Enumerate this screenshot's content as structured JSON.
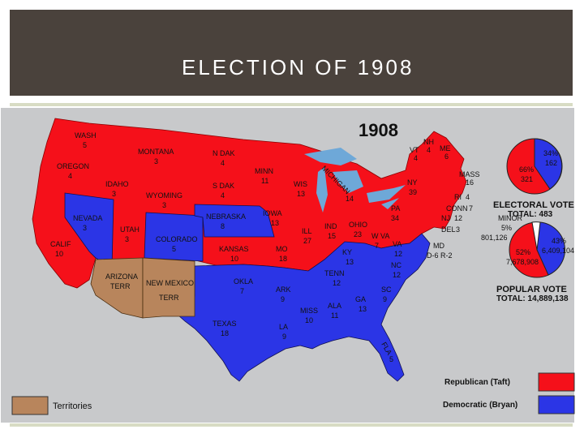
{
  "slide": {
    "title": "ELECTION OF 1908"
  },
  "map": {
    "year": "1908",
    "colors": {
      "republican": "#f5101a",
      "democratic": "#2b35e6",
      "territory": "#b8855c",
      "ocean": "#c8c9cb",
      "lakes": "#6ea8d8"
    },
    "states": [
      {
        "name": "WASH",
        "votes": "5"
      },
      {
        "name": "OREGON",
        "votes": "4"
      },
      {
        "name": "CALIF",
        "votes": "10"
      },
      {
        "name": "IDAHO",
        "votes": "3"
      },
      {
        "name": "NEVADA",
        "votes": "3"
      },
      {
        "name": "UTAH",
        "votes": "3"
      },
      {
        "name": "MONTANA",
        "votes": "3"
      },
      {
        "name": "WYOMING",
        "votes": "3"
      },
      {
        "name": "COLORADO",
        "votes": "5"
      },
      {
        "name": "N DAK",
        "votes": "4"
      },
      {
        "name": "S DAK",
        "votes": "4"
      },
      {
        "name": "NEBRASKA",
        "votes": "8"
      },
      {
        "name": "KANSAS",
        "votes": "10"
      },
      {
        "name": "OKLA",
        "votes": "7"
      },
      {
        "name": "TEXAS",
        "votes": "18"
      },
      {
        "name": "MINN",
        "votes": "11"
      },
      {
        "name": "IOWA",
        "votes": "13"
      },
      {
        "name": "MO",
        "votes": "18"
      },
      {
        "name": "ARK",
        "votes": "9"
      },
      {
        "name": "LA",
        "votes": "9"
      },
      {
        "name": "WIS",
        "votes": "13"
      },
      {
        "name": "ILL",
        "votes": "27"
      },
      {
        "name": "MICHIGAN",
        "votes": "14"
      },
      {
        "name": "IND",
        "votes": "15"
      },
      {
        "name": "OHIO",
        "votes": "23"
      },
      {
        "name": "KY",
        "votes": "13"
      },
      {
        "name": "TENN",
        "votes": "12"
      },
      {
        "name": "MISS",
        "votes": "10"
      },
      {
        "name": "ALA",
        "votes": "11"
      },
      {
        "name": "GA",
        "votes": "13"
      },
      {
        "name": "FLA",
        "votes": "5"
      },
      {
        "name": "SC",
        "votes": "9"
      },
      {
        "name": "NC",
        "votes": "12"
      },
      {
        "name": "VA",
        "votes": "12"
      },
      {
        "name": "W VA",
        "votes": "7"
      },
      {
        "name": "PA",
        "votes": "34"
      },
      {
        "name": "NY",
        "votes": "39"
      },
      {
        "name": "VT",
        "votes": "4"
      },
      {
        "name": "NH",
        "votes": "4"
      },
      {
        "name": "ME",
        "votes": "6"
      },
      {
        "name": "MASS",
        "votes": "16"
      },
      {
        "name": "RI",
        "votes": "4"
      },
      {
        "name": "CONN",
        "votes": "7"
      },
      {
        "name": "NJ",
        "votes": "12"
      },
      {
        "name": "DEL",
        "votes": "3"
      }
    ],
    "territories": [
      {
        "name": "ARIZONA",
        "sub": "TERR"
      },
      {
        "name": "NEW MEXICO",
        "sub": "TERR"
      }
    ],
    "md_label": "MD",
    "md_split": "D-6 R-2"
  },
  "electoral": {
    "rep_pct": "66%",
    "rep_votes": "321",
    "dem_pct": "34%",
    "dem_votes": "162",
    "title": "ELECTORAL VOTE",
    "total": "TOTAL: 483"
  },
  "popular": {
    "minor_label": "MINOR",
    "minor_pct": "5%",
    "minor_votes": "801,126",
    "rep_pct": "52%",
    "rep_votes": "7,678,908",
    "dem_pct": "43%",
    "dem_votes": "6,409,104",
    "title": "POPULAR VOTE",
    "total": "TOTAL: 14,889,138"
  },
  "legend": {
    "territories": "Territories",
    "republican": "Republican (Taft)",
    "democratic": "Democratic (Bryan)"
  }
}
